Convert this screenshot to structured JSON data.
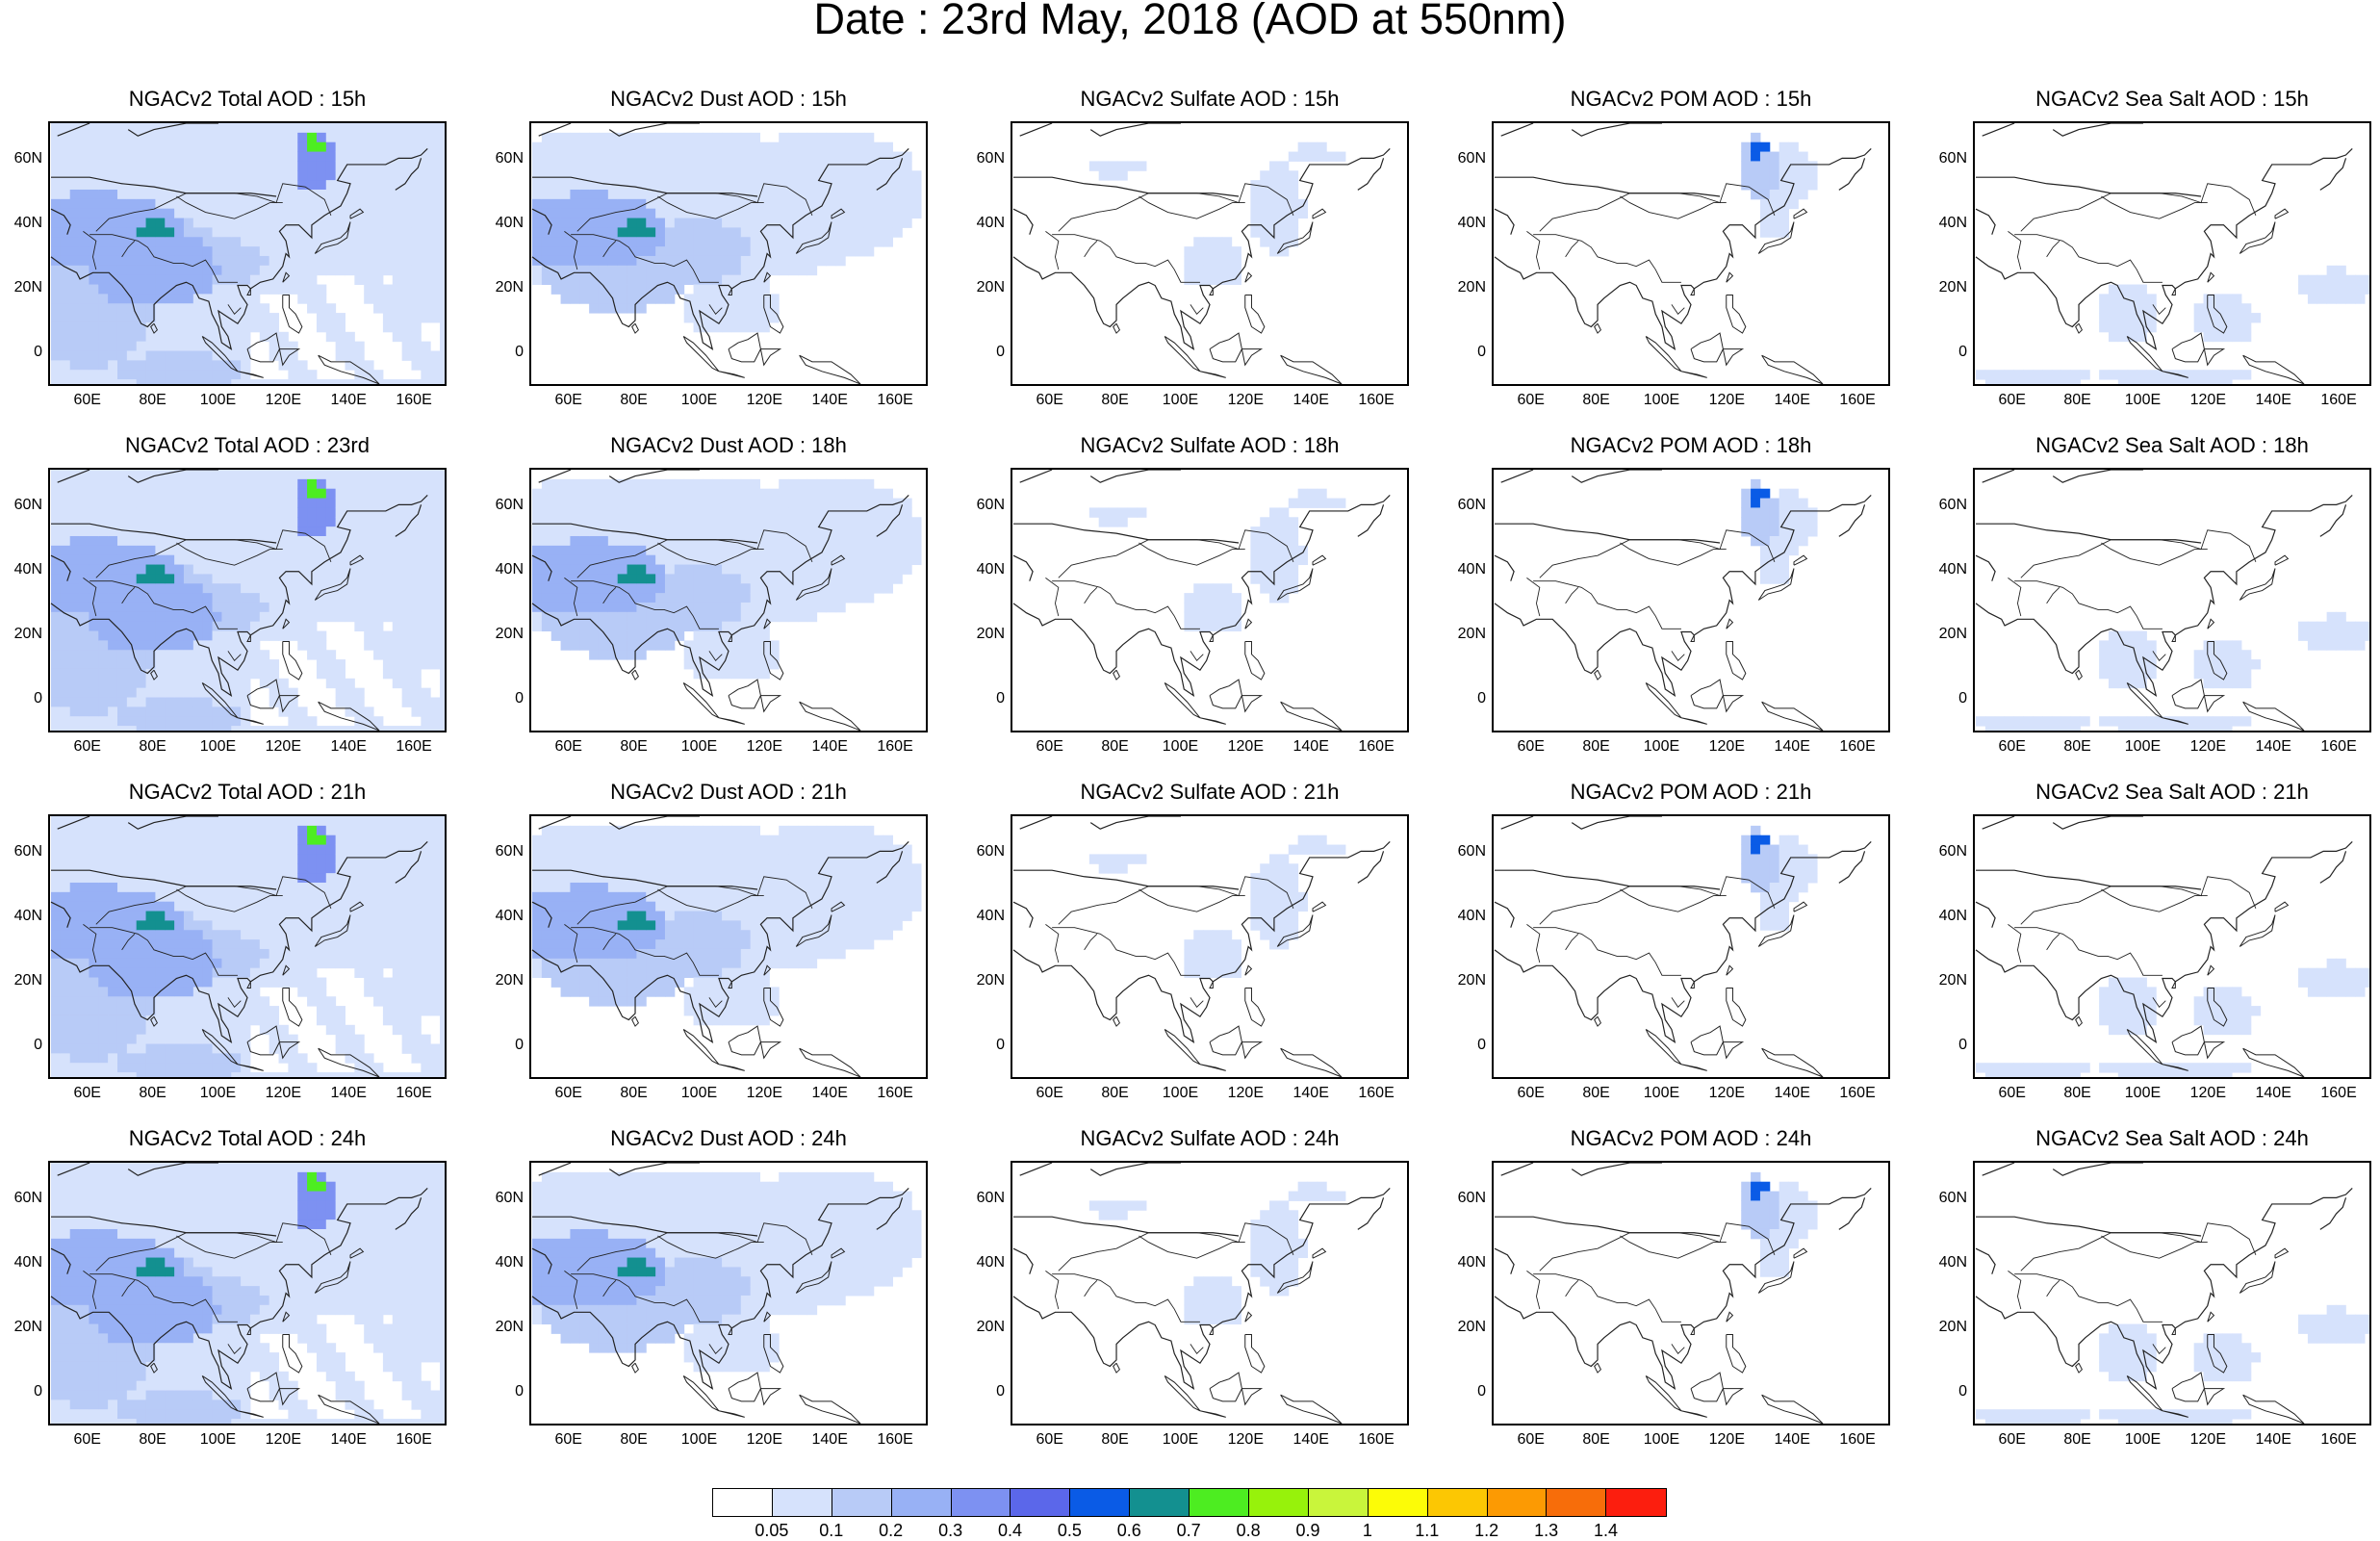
{
  "title": "Date : 23rd May, 2018 (AOD at 550nm)",
  "columns": [
    "total",
    "dust",
    "sulfate",
    "pom",
    "seasalt"
  ],
  "panels": [
    [
      "NGACv2 Total AOD : 15h",
      "NGACv2 Dust AOD : 15h",
      "NGACv2 Sulfate AOD : 15h",
      "NGACv2 POM AOD : 15h",
      "NGACv2 Sea Salt AOD : 15h"
    ],
    [
      "NGACv2 Total AOD : 23rd",
      "NGACv2 Dust AOD : 18h",
      "NGACv2 Sulfate AOD : 18h",
      "NGACv2 POM AOD : 18h",
      "NGACv2 Sea Salt AOD : 18h"
    ],
    [
      "NGACv2 Total AOD : 21h",
      "NGACv2 Dust AOD : 21h",
      "NGACv2 Sulfate AOD : 21h",
      "NGACv2 POM AOD : 21h",
      "NGACv2 Sea Salt AOD : 21h"
    ],
    [
      "NGACv2 Total AOD : 24h",
      "NGACv2 Dust AOD : 24h",
      "NGACv2 Sulfate AOD : 24h",
      "NGACv2 POM AOD : 24h",
      "NGACv2 Sea Salt  AOD : 24h"
    ]
  ],
  "y_ticks": [
    "60N",
    "40N",
    "20N",
    "0"
  ],
  "x_ticks": [
    "60E",
    "80E",
    "100E",
    "120E",
    "140E",
    "160E"
  ],
  "map_extent": {
    "lon": [
      48,
      170
    ],
    "lat": [
      -10,
      72
    ]
  },
  "colorbar": {
    "colors": [
      "#ffffff",
      "#d6e2fc",
      "#b8cbf7",
      "#98b1f5",
      "#7d91f2",
      "#5b67ea",
      "#0a5be6",
      "#139090",
      "#4ded21",
      "#97f20b",
      "#c9f53b",
      "#fcfc07",
      "#fcc703",
      "#fc9a03",
      "#f76d0a",
      "#fc1e0e"
    ],
    "labels": [
      "0.05",
      "0.1",
      "0.2",
      "0.3",
      "0.4",
      "0.5",
      "0.6",
      "0.7",
      "0.8",
      "0.9",
      "1",
      "1.1",
      "1.2",
      "1.3",
      "1.4"
    ]
  }
}
